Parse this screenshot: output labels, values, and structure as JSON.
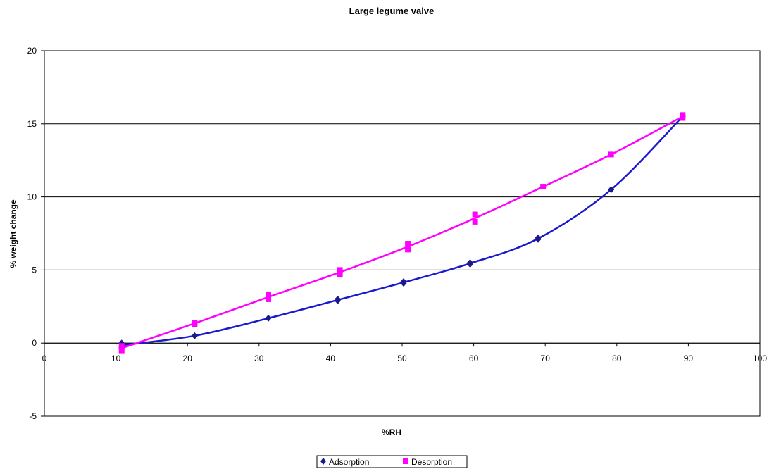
{
  "chart_data": {
    "type": "scatter",
    "title": "Large legume valve",
    "xlabel": "%RH",
    "ylabel": "% weight change",
    "xlim": [
      0,
      100
    ],
    "ylim": [
      -5,
      20
    ],
    "x_ticks": [
      0,
      10,
      20,
      30,
      40,
      50,
      60,
      70,
      80,
      90,
      100
    ],
    "y_ticks": [
      -5,
      0,
      5,
      10,
      15,
      20
    ],
    "grid": "horizontal major gridlines",
    "legend_position": "bottom",
    "series": [
      {
        "name": "Adsorption",
        "color": "#1a1a8c",
        "line_color": "#1a1acc",
        "marker": "diamond",
        "points": [
          [
            10.8,
            0.0
          ],
          [
            10.8,
            -0.3
          ],
          [
            21.0,
            0.5
          ],
          [
            31.3,
            1.7
          ],
          [
            41.0,
            2.9
          ],
          [
            41.0,
            3.0
          ],
          [
            50.2,
            4.1
          ],
          [
            50.2,
            4.2
          ],
          [
            59.5,
            5.4
          ],
          [
            59.5,
            5.5
          ],
          [
            69.0,
            7.1
          ],
          [
            69.0,
            7.2
          ],
          [
            79.2,
            10.5
          ],
          [
            89.2,
            15.5
          ]
        ]
      },
      {
        "name": "Desorption",
        "color": "#ff00ff",
        "line_color": "#ff00ff",
        "marker": "square",
        "points": [
          [
            10.8,
            -0.5
          ],
          [
            10.8,
            -0.2
          ],
          [
            21.0,
            1.3
          ],
          [
            21.0,
            1.4
          ],
          [
            31.3,
            3.0
          ],
          [
            31.3,
            3.3
          ],
          [
            41.3,
            4.7
          ],
          [
            41.3,
            5.0
          ],
          [
            50.8,
            6.4
          ],
          [
            50.8,
            6.8
          ],
          [
            60.2,
            8.3
          ],
          [
            60.2,
            8.8
          ],
          [
            69.7,
            10.7
          ],
          [
            79.2,
            12.9
          ],
          [
            89.2,
            15.4
          ],
          [
            89.2,
            15.6
          ]
        ]
      }
    ]
  }
}
